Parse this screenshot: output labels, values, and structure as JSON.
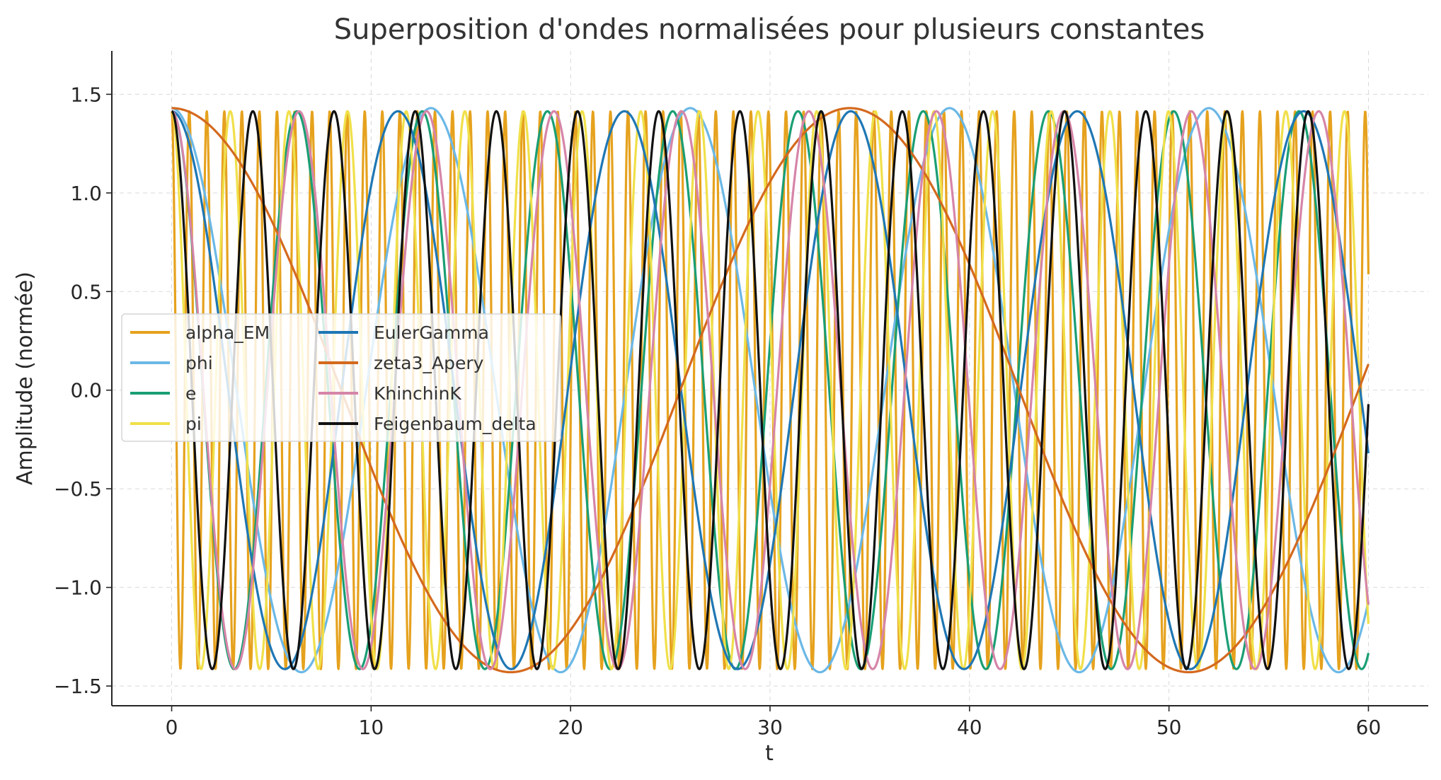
{
  "chart_data": {
    "type": "line",
    "title": "Superposition d'ondes normalisées pour plusieurs constantes",
    "xlabel": "t",
    "ylabel": "Amplitude (normée)",
    "xlim": [
      -3,
      63
    ],
    "ylim": [
      -1.6,
      1.72
    ],
    "xticks": [
      0,
      10,
      20,
      30,
      40,
      50,
      60
    ],
    "yticks": [
      -1.5,
      -1.0,
      -0.5,
      0.0,
      0.5,
      1.0,
      1.5
    ],
    "ytick_labels": [
      "−1.5",
      "−1.0",
      "−0.5",
      "0.0",
      "0.5",
      "1.0",
      "1.5"
    ],
    "xtick_labels": [
      "0",
      "10",
      "20",
      "30",
      "40",
      "50",
      "60"
    ],
    "grid": true,
    "legend": {
      "position": "center-left",
      "columns": 2
    },
    "series": [
      {
        "name": "alpha_EM",
        "color": "#E6A21E",
        "amplitude": 1.414,
        "period": 0.88,
        "phase": 0.0,
        "t_start": 0,
        "t_end": 60
      },
      {
        "name": "phi",
        "color": "#6BB8E6",
        "amplitude": 1.43,
        "period": 13.0,
        "phase": 0.0,
        "t_start": 0,
        "t_end": 60
      },
      {
        "name": "e",
        "color": "#1A9E74",
        "amplitude": 1.414,
        "period": 6.28,
        "phase": 0.0,
        "t_start": 0,
        "t_end": 60
      },
      {
        "name": "pi",
        "color": "#F0E04A",
        "amplitude": 1.414,
        "period": 2.94,
        "phase": 0.0,
        "t_start": 0,
        "t_end": 60
      },
      {
        "name": "EulerGamma",
        "color": "#1F77B4",
        "amplitude": 1.414,
        "period": 11.35,
        "phase": 0.0,
        "t_start": 0,
        "t_end": 60
      },
      {
        "name": "zeta3_Apery",
        "color": "#D4691E",
        "amplitude": 1.43,
        "period": 34.0,
        "phase": 0.0,
        "t_start": 0,
        "t_end": 60
      },
      {
        "name": "KhinchinK",
        "color": "#D685A8",
        "amplitude": 1.414,
        "period": 6.39,
        "phase": 0.0,
        "t_start": 0,
        "t_end": 60
      },
      {
        "name": "Feigenbaum_delta",
        "color": "#111111",
        "amplitude": 1.414,
        "period": 4.07,
        "phase": 0.0,
        "t_start": 0,
        "t_end": 60
      }
    ]
  }
}
